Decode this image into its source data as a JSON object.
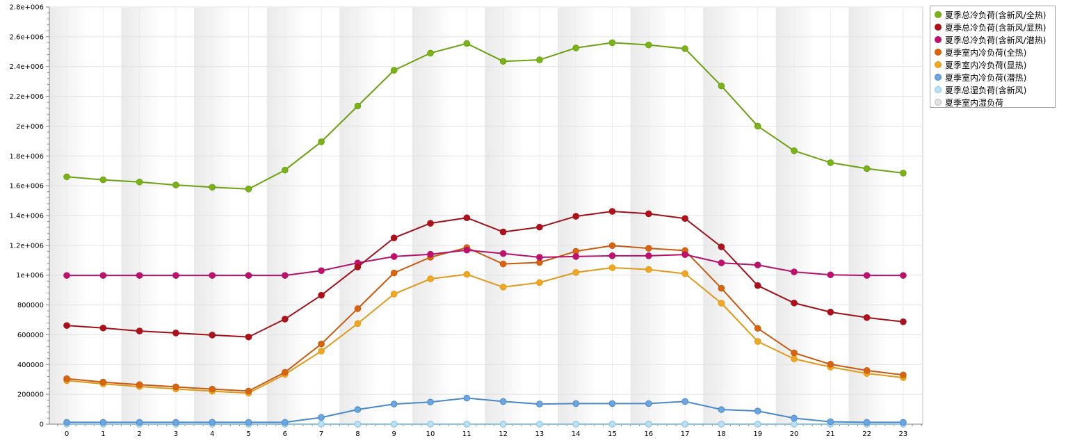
{
  "chart_data": {
    "type": "line",
    "title": "",
    "xlabel": "",
    "ylabel": "",
    "x": [
      0,
      1,
      2,
      3,
      4,
      5,
      6,
      7,
      8,
      9,
      10,
      11,
      12,
      13,
      14,
      15,
      16,
      17,
      18,
      19,
      20,
      21,
      22,
      23
    ],
    "x_ticks": [
      "0",
      "1",
      "2",
      "3",
      "4",
      "5",
      "6",
      "7",
      "8",
      "9",
      "10",
      "11",
      "12",
      "13",
      "14",
      "15",
      "16",
      "17",
      "18",
      "19",
      "20",
      "21",
      "22",
      "23"
    ],
    "ylim": [
      0,
      2800000
    ],
    "y_ticks": [
      0,
      200000,
      400000,
      600000,
      800000,
      1000000,
      1200000,
      1400000,
      1600000,
      1800000,
      2000000,
      2200000,
      2400000,
      2600000,
      2800000
    ],
    "y_tick_labels": [
      "0",
      "200000",
      "400000",
      "600000",
      "800000",
      "1e+006",
      "1.2e+006",
      "1.4e+006",
      "1.6e+006",
      "1.8e+006",
      "2e+006",
      "2.2e+006",
      "2.4e+006",
      "2.6e+006",
      "2.8e+006"
    ],
    "grid": true,
    "legend_position": "top-right",
    "series": [
      {
        "name": "夏季总冷负荷(含新风/全热)",
        "color": "#6aa10f",
        "fill": "#7ab317",
        "values": [
          1660000,
          1640000,
          1625000,
          1605000,
          1590000,
          1578000,
          1705000,
          1895000,
          2135000,
          2375000,
          2490000,
          2555000,
          2435000,
          2445000,
          2525000,
          2560000,
          2545000,
          2520000,
          2270000,
          2000000,
          1835000,
          1755000,
          1715000,
          1685000
        ]
      },
      {
        "name": "夏季总冷负荷(含新风/显热)",
        "color": "#a01018",
        "fill": "#b0101a",
        "values": [
          662000,
          645000,
          625000,
          612000,
          598000,
          585000,
          705000,
          865000,
          1055000,
          1250000,
          1348000,
          1385000,
          1290000,
          1322000,
          1395000,
          1428000,
          1412000,
          1380000,
          1190000,
          930000,
          813000,
          752000,
          715000,
          687000
        ]
      },
      {
        "name": "夏季总冷负荷(含新风/潜热)",
        "color": "#b5106a",
        "fill": "#c0106e",
        "values": [
          998000,
          998000,
          998000,
          998000,
          998000,
          998000,
          998000,
          1030000,
          1082000,
          1125000,
          1140000,
          1168000,
          1145000,
          1120000,
          1125000,
          1130000,
          1130000,
          1138000,
          1082000,
          1068000,
          1022000,
          1002000,
          998000,
          998000
        ]
      },
      {
        "name": "夏季室内冷负荷(全热)",
        "color": "#c85a10",
        "fill": "#d8640e",
        "values": [
          305000,
          282000,
          265000,
          250000,
          235000,
          222000,
          348000,
          538000,
          775000,
          1015000,
          1120000,
          1185000,
          1075000,
          1085000,
          1160000,
          1198000,
          1180000,
          1165000,
          912000,
          643000,
          478000,
          402000,
          360000,
          330000
        ]
      },
      {
        "name": "夏季室内冷负荷(显热)",
        "color": "#e09a18",
        "fill": "#f0a820",
        "values": [
          292000,
          270000,
          252000,
          236000,
          221000,
          208000,
          334000,
          490000,
          675000,
          873000,
          975000,
          1005000,
          920000,
          950000,
          1018000,
          1050000,
          1038000,
          1010000,
          812000,
          555000,
          438000,
          383000,
          340000,
          312000
        ]
      },
      {
        "name": "夏季室内冷负荷(潜热)",
        "color": "#4a88cc",
        "fill": "#6aa6e0",
        "values": [
          12000,
          12000,
          12000,
          12000,
          12000,
          12000,
          12000,
          45000,
          98000,
          135000,
          148000,
          175000,
          152000,
          135000,
          138000,
          138000,
          138000,
          152000,
          98000,
          88000,
          40000,
          16000,
          12000,
          12000
        ]
      },
      {
        "name": "夏季总湿负荷(含新风)",
        "color": "#8cc4e4",
        "fill": "#b8e0f6",
        "values": [
          0,
          0,
          0,
          0,
          0,
          0,
          0,
          0,
          0,
          0,
          0,
          0,
          0,
          0,
          0,
          0,
          0,
          0,
          0,
          0,
          0,
          0,
          0,
          0
        ]
      },
      {
        "name": "夏季室内湿负荷",
        "color": "#b8b8b8",
        "fill": "#e4e4e4",
        "values": [
          0,
          0,
          0,
          0,
          0,
          0,
          0,
          0,
          0,
          0,
          0,
          0,
          0,
          0,
          0,
          0,
          0,
          0,
          0,
          0,
          0,
          0,
          0,
          0
        ]
      }
    ]
  }
}
